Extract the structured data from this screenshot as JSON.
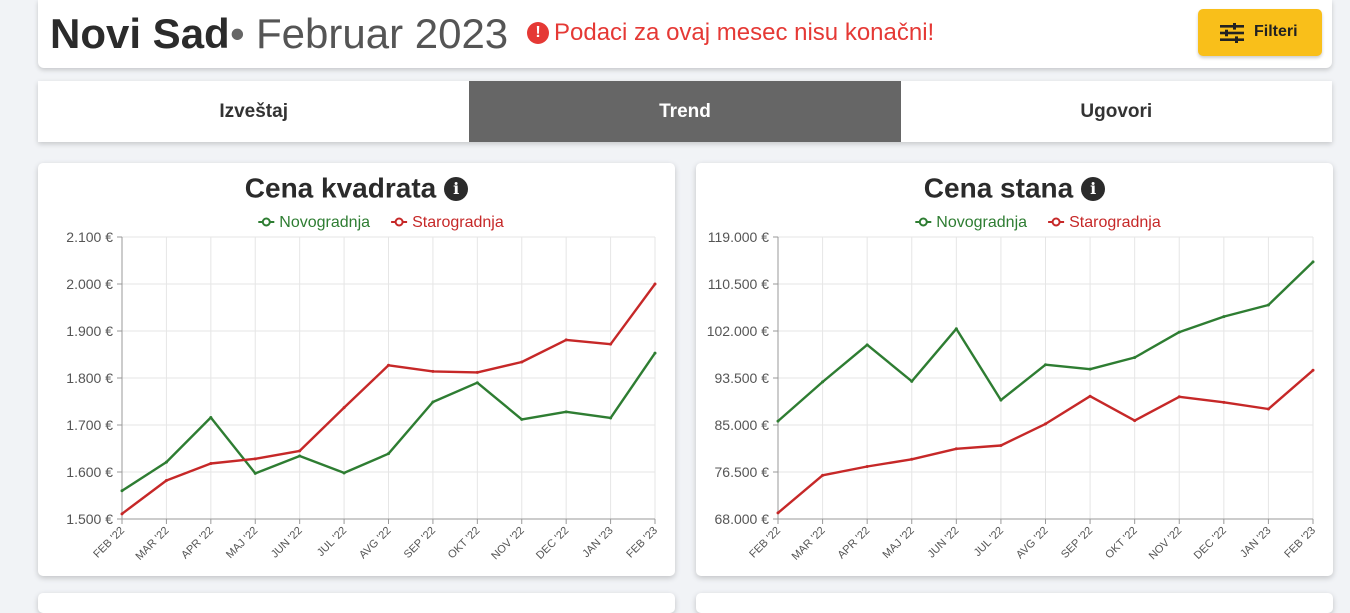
{
  "header": {
    "city": "Novi Sad",
    "separator": "•",
    "period": "Februar 2023",
    "warning_icon": "!",
    "warning": "Podaci za ovaj mesec nisu konačni!",
    "filter_label": "Filteri",
    "filter_icon": "sliders-icon"
  },
  "tabs": [
    {
      "label": "Izveštaj"
    },
    {
      "label": "Trend"
    },
    {
      "label": "Ugovori"
    }
  ],
  "colors": {
    "novogradnja": "#2e7d32",
    "starogradnja": "#c62828",
    "accent": "#f9bf1a",
    "active_tab": "#666666"
  },
  "cards": [
    {
      "title": "Cena kvadrata",
      "info_icon": "i"
    },
    {
      "title": "Cena stana",
      "info_icon": "i"
    }
  ],
  "chart_data": [
    {
      "type": "line",
      "title": "Cena kvadrata",
      "categories": [
        "FEB '22",
        "MAR '22",
        "APR '22",
        "MAJ '22",
        "JUN '22",
        "JUL '22",
        "AVG '22",
        "SEP '22",
        "OKT '22",
        "NOV '22",
        "DEC '22",
        "JAN '23",
        "FEB '23"
      ],
      "ylim": [
        1500,
        2100
      ],
      "yticks": [
        "2.100 €",
        "2.000 €",
        "1.900 €",
        "1.800 €",
        "1.700 €",
        "1.600 €",
        "1.500 €"
      ],
      "series": [
        {
          "name": "Novogradnja",
          "values": [
            1560,
            1621,
            1716,
            1597,
            1634,
            1598,
            1639,
            1749,
            1790,
            1712,
            1728,
            1715,
            1853
          ]
        },
        {
          "name": "Starogradnja",
          "values": [
            1511,
            1582,
            1618,
            1628,
            1645,
            1737,
            1827,
            1814,
            1812,
            1834,
            1881,
            1872,
            2000
          ]
        }
      ],
      "legend": "top-center",
      "grid": true
    },
    {
      "type": "line",
      "title": "Cena stana",
      "categories": [
        "FEB '22",
        "MAR '22",
        "APR '22",
        "MAJ '22",
        "JUN '22",
        "JUL '22",
        "AVG '22",
        "SEP '22",
        "OKT '22",
        "NOV '22",
        "DEC '22",
        "JAN '23",
        "FEB '23"
      ],
      "ylim": [
        68000,
        119000
      ],
      "yticks": [
        "119.000 €",
        "110.500 €",
        "102.000 €",
        "93.500 €",
        "85.000 €",
        "76.500 €",
        "68.000 €"
      ],
      "series": [
        {
          "name": "Novogradnja",
          "values": [
            85700,
            92800,
            99500,
            92900,
            102400,
            89500,
            95900,
            95100,
            97200,
            101800,
            104600,
            106700,
            114500
          ]
        },
        {
          "name": "Starogradnja",
          "values": [
            69100,
            75900,
            77500,
            78800,
            80700,
            81300,
            85200,
            90200,
            85800,
            90100,
            89100,
            87900,
            94900
          ]
        }
      ],
      "legend": "top-center",
      "grid": true
    }
  ]
}
